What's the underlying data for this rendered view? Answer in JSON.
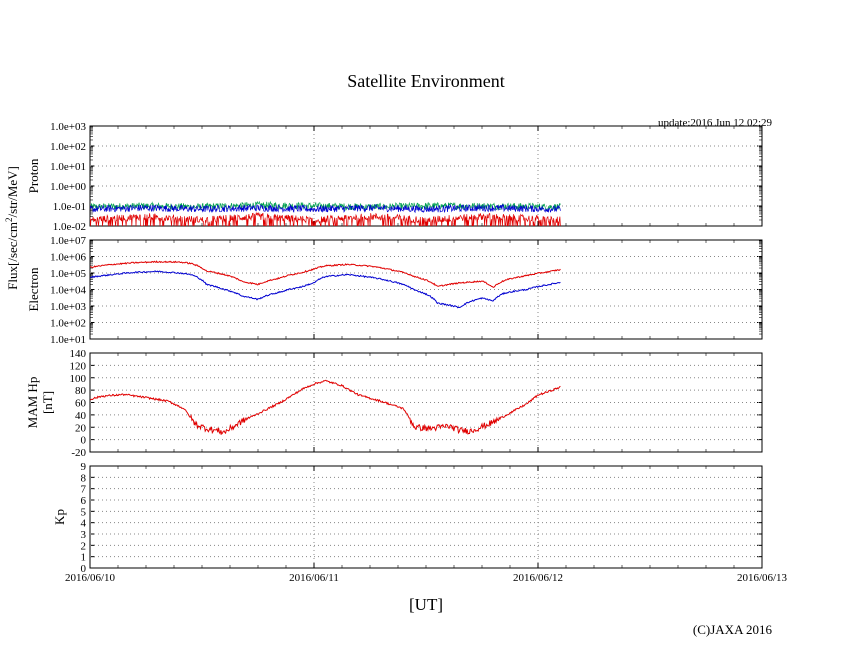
{
  "page": {
    "title": "Satellite Environment",
    "update": "update:2016 Jun 12 02:29",
    "x_axis_label": "[UT]",
    "copyright": "(C)JAXA 2016"
  },
  "colors": {
    "red": "#e00000",
    "blue": "#0000d0",
    "green": "#00a050",
    "grid": "#888888"
  },
  "chart_data": [
    {
      "type": "line",
      "panel": "proton",
      "ylabel_lines": [
        "Proton"
      ],
      "shared_ylabel": "Flux[/sec/cm²/str/MeV]",
      "yscale": "log",
      "ylim": [
        0.01,
        1000
      ],
      "yticks": [
        "1.0e-02",
        "1.0e-01",
        "1.0e+00",
        "1.0e+01",
        "1.0e+02",
        "1.0e+03"
      ],
      "x": [
        0,
        0.25,
        0.5,
        0.75,
        1.0,
        1.25,
        1.5,
        1.75,
        2.1
      ],
      "series": [
        {
          "name": "proton-green",
          "color": "green",
          "values": [
            0.09,
            0.1,
            0.09,
            0.11,
            0.1,
            0.09,
            0.1,
            0.1,
            0.09
          ]
        },
        {
          "name": "proton-blue",
          "color": "blue",
          "values": [
            0.07,
            0.08,
            0.07,
            0.08,
            0.07,
            0.08,
            0.07,
            0.08,
            0.07
          ]
        },
        {
          "name": "proton-red",
          "color": "red",
          "values": [
            0.02,
            0.03,
            0.02,
            0.03,
            0.02,
            0.03,
            0.02,
            0.03,
            0.02
          ]
        }
      ]
    },
    {
      "type": "line",
      "panel": "electron",
      "ylabel_lines": [
        "Electron"
      ],
      "yscale": "log",
      "ylim": [
        10,
        10000000
      ],
      "yticks": [
        "1.0e+01",
        "1.0e+02",
        "1.0e+03",
        "1.0e+04",
        "1.0e+05",
        "1.0e+06",
        "1.0e+07"
      ],
      "x": [
        0,
        0.1,
        0.2,
        0.3,
        0.4,
        0.45,
        0.52,
        0.6,
        0.68,
        0.75,
        0.85,
        0.95,
        1.0,
        1.05,
        1.15,
        1.25,
        1.35,
        1.45,
        1.55,
        1.65,
        1.75,
        1.8,
        1.85,
        1.95,
        2.05,
        2.1
      ],
      "series": [
        {
          "name": "electron-red",
          "color": "red",
          "values": [
            220000,
            330000,
            420000,
            480000,
            460000,
            380000,
            130000,
            80000,
            30000,
            20000,
            50000,
            110000,
            170000,
            270000,
            330000,
            260000,
            150000,
            60000,
            15000,
            25000,
            32000,
            13000,
            35000,
            70000,
            120000,
            160000
          ]
        },
        {
          "name": "electron-blue",
          "color": "blue",
          "values": [
            55000,
            80000,
            110000,
            125000,
            100000,
            80000,
            20000,
            10000,
            4000,
            2500,
            7000,
            15000,
            25000,
            60000,
            80000,
            55000,
            30000,
            9000,
            1500,
            800,
            3000,
            2000,
            6000,
            10000,
            20000,
            27000
          ]
        }
      ]
    },
    {
      "type": "line",
      "panel": "hp",
      "ylabel_lines": [
        "MAM Hp",
        "[nT]"
      ],
      "yscale": "linear",
      "ylim": [
        -20,
        140
      ],
      "yticks": [
        "-20",
        "0",
        "20",
        "40",
        "60",
        "80",
        "100",
        "120",
        "140"
      ],
      "x": [
        0,
        0.05,
        0.15,
        0.25,
        0.35,
        0.42,
        0.47,
        0.52,
        0.6,
        0.68,
        0.75,
        0.85,
        0.95,
        1.0,
        1.05,
        1.12,
        1.2,
        1.3,
        1.4,
        1.45,
        1.52,
        1.6,
        1.65,
        1.7,
        1.8,
        1.9,
        1.95,
        2.0,
        2.05,
        2.1
      ],
      "series": [
        {
          "name": "hp-red",
          "color": "red",
          "values": [
            65,
            70,
            73,
            68,
            62,
            50,
            25,
            18,
            12,
            30,
            42,
            60,
            82,
            90,
            95,
            88,
            72,
            62,
            50,
            20,
            18,
            22,
            15,
            14,
            28,
            48,
            58,
            72,
            78,
            85
          ]
        }
      ]
    },
    {
      "type": "scatter",
      "panel": "kp",
      "ylabel_lines": [
        "Kp"
      ],
      "yscale": "linear",
      "ylim": [
        0,
        9
      ],
      "yticks": [
        "0",
        "1",
        "2",
        "3",
        "4",
        "5",
        "6",
        "7",
        "8",
        "9"
      ],
      "series": []
    }
  ],
  "x_axis": {
    "domain": [
      0,
      3
    ],
    "ticks": [
      {
        "v": 0,
        "label": "2016/06/10"
      },
      {
        "v": 1,
        "label": "2016/06/11"
      },
      {
        "v": 2,
        "label": "2016/06/12"
      },
      {
        "v": 3,
        "label": "2016/06/13"
      }
    ]
  }
}
